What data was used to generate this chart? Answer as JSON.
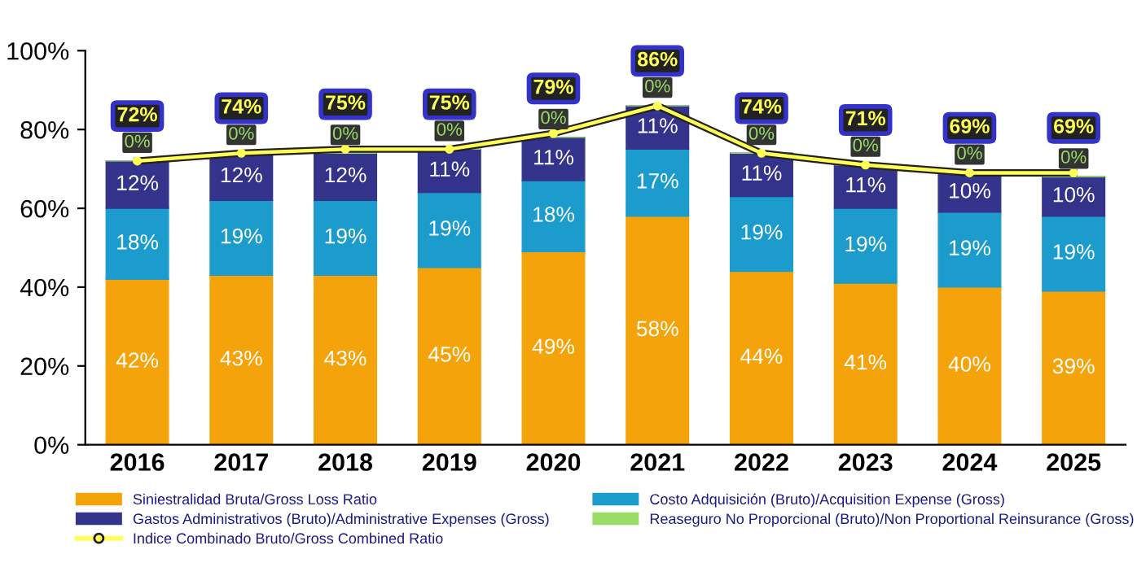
{
  "chart_data": {
    "type": "bar",
    "stacked": true,
    "categories": [
      "2016",
      "2017",
      "2018",
      "2019",
      "2020",
      "2021",
      "2022",
      "2023",
      "2024",
      "2025"
    ],
    "series": [
      {
        "name": "Siniestralidad Bruta/Gross Loss Ratio",
        "color": "#f5a30a",
        "values": [
          42,
          43,
          43,
          45,
          49,
          58,
          44,
          41,
          40,
          39
        ],
        "value_labels": [
          "42%",
          "43%",
          "43%",
          "45%",
          "49%",
          "58%",
          "44%",
          "41%",
          "40%",
          "39%"
        ]
      },
      {
        "name": "Costo Adquisición (Bruto)/Acquisition Expense (Gross)",
        "color": "#1c9ccc",
        "values": [
          18,
          19,
          19,
          19,
          18,
          17,
          19,
          19,
          19,
          19
        ],
        "value_labels": [
          "18%",
          "19%",
          "19%",
          "19%",
          "18%",
          "17%",
          "19%",
          "19%",
          "19%",
          "19%"
        ]
      },
      {
        "name": "Gastos Administrativos (Bruto)/Administrative Expenses (Gross)",
        "color": "#34348c",
        "values": [
          12,
          12,
          12,
          11,
          11,
          11,
          11,
          11,
          10,
          10
        ],
        "value_labels": [
          "12%",
          "12%",
          "12%",
          "11%",
          "11%",
          "11%",
          "11%",
          "11%",
          "10%",
          "10%"
        ]
      },
      {
        "name": "Reaseguro No Proporcional (Bruto)/Non Proportional Reinsurance (Gross)",
        "color": "#99dd66",
        "values": [
          0,
          0,
          0,
          0,
          0,
          0,
          0,
          0,
          0,
          0
        ],
        "value_labels": [
          "0%",
          "0%",
          "0%",
          "0%",
          "0%",
          "0%",
          "0%",
          "0%",
          "0%",
          "0%"
        ]
      },
      {
        "name": "Indice Combinado Bruto/Gross Combined Ratio",
        "type": "line",
        "color": "#ffff55",
        "marker": "circle",
        "values": [
          72,
          74,
          75,
          75,
          79,
          86,
          74,
          71,
          69,
          69
        ],
        "value_labels": [
          "72%",
          "74%",
          "75%",
          "75%",
          "79%",
          "86%",
          "74%",
          "71%",
          "69%",
          "69%"
        ]
      }
    ],
    "ylim": [
      0,
      100
    ],
    "yticks": [
      {
        "value": 0,
        "label": "0%"
      },
      {
        "value": 20,
        "label": "20%"
      },
      {
        "value": 40,
        "label": "40%"
      },
      {
        "value": 60,
        "label": "60%"
      },
      {
        "value": 80,
        "label": "80%"
      },
      {
        "value": 100,
        "label": "100%"
      }
    ],
    "grid": false,
    "legend": "bottom"
  }
}
